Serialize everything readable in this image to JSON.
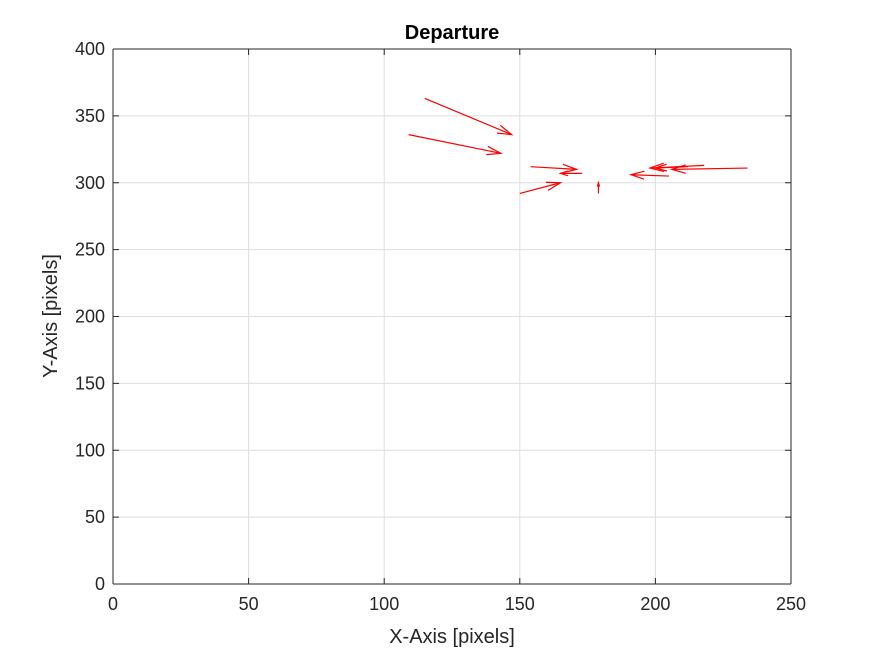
{
  "chart_data": {
    "type": "quiver",
    "title": "Departure",
    "xlabel": "X-Axis [pixels]",
    "ylabel": "Y-Axis [pixels]",
    "xlim": [
      0,
      250
    ],
    "ylim": [
      0,
      400
    ],
    "xticks": [
      0,
      50,
      100,
      150,
      200,
      250
    ],
    "yticks": [
      0,
      50,
      100,
      150,
      200,
      250,
      300,
      350,
      400
    ],
    "grid": true,
    "color": "#ff0000",
    "vectors": [
      {
        "x": 115,
        "y": 363,
        "u": 32,
        "v": -27
      },
      {
        "x": 109,
        "y": 336,
        "u": 34,
        "v": -14
      },
      {
        "x": 154,
        "y": 312,
        "u": 17,
        "v": -2
      },
      {
        "x": 150,
        "y": 292,
        "u": 15,
        "v": 8
      },
      {
        "x": 173,
        "y": 307,
        "u": -8,
        "v": 0
      },
      {
        "x": 179,
        "y": 292,
        "u": 0,
        "v": 8
      },
      {
        "x": 205,
        "y": 305,
        "u": -14,
        "v": 1
      },
      {
        "x": 218,
        "y": 313,
        "u": -20,
        "v": -2
      },
      {
        "x": 234,
        "y": 311,
        "u": -28,
        "v": -1
      },
      {
        "x": 212,
        "y": 312,
        "u": -12,
        "v": -1
      }
    ]
  }
}
